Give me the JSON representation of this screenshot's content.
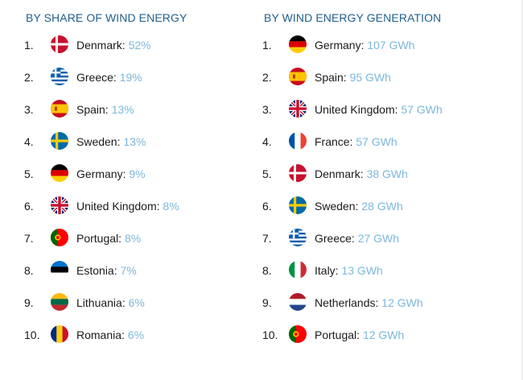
{
  "left": {
    "heading": "BY SHARE OF WIND ENERGY",
    "items": [
      {
        "rank": "1.",
        "flag": "denmark-flag-icon",
        "country": "Denmark:",
        "value": "52%"
      },
      {
        "rank": "2.",
        "flag": "greece-flag-icon",
        "country": "Greece:",
        "value": "19%"
      },
      {
        "rank": "3.",
        "flag": "spain-flag-icon",
        "country": "Spain:",
        "value": "13%"
      },
      {
        "rank": "4.",
        "flag": "sweden-flag-icon",
        "country": "Sweden:",
        "value": "13%"
      },
      {
        "rank": "5.",
        "flag": "germany-flag-icon",
        "country": "Germany:",
        "value": "9%"
      },
      {
        "rank": "6.",
        "flag": "united-kingdom-flag-icon",
        "country": "United Kingdom:",
        "value": "8%"
      },
      {
        "rank": "7.",
        "flag": "portugal-flag-icon",
        "country": "Portugal:",
        "value": "8%"
      },
      {
        "rank": "8.",
        "flag": "estonia-flag-icon",
        "country": "Estonia:",
        "value": "7%"
      },
      {
        "rank": "9.",
        "flag": "lithuania-flag-icon",
        "country": "Lithuania:",
        "value": "6%"
      },
      {
        "rank": "10.",
        "flag": "romania-flag-icon",
        "country": "Romania:",
        "value": "6%"
      }
    ]
  },
  "right": {
    "heading": "BY WIND ENERGY GENERATION",
    "items": [
      {
        "rank": "1.",
        "flag": "germany-flag-icon",
        "country": "Germany:",
        "value": "107 GWh"
      },
      {
        "rank": "2.",
        "flag": "spain-flag-icon",
        "country": "Spain:",
        "value": "95 GWh"
      },
      {
        "rank": "3.",
        "flag": "united-kingdom-flag-icon",
        "country": "United Kingdom:",
        "value": "57 GWh"
      },
      {
        "rank": "4.",
        "flag": "france-flag-icon",
        "country": "France:",
        "value": "57 GWh"
      },
      {
        "rank": "5.",
        "flag": "denmark-flag-icon",
        "country": "Denmark:",
        "value": "38 GWh"
      },
      {
        "rank": "6.",
        "flag": "sweden-flag-icon",
        "country": "Sweden:",
        "value": "28 GWh"
      },
      {
        "rank": "7.",
        "flag": "greece-flag-icon",
        "country": "Greece:",
        "value": "27 GWh"
      },
      {
        "rank": "8.",
        "flag": "italy-flag-icon",
        "country": "Italy:",
        "value": "13 GWh"
      },
      {
        "rank": "9.",
        "flag": "netherlands-flag-icon",
        "country": "Netherlands:",
        "value": "12 GWh"
      },
      {
        "rank": "10.",
        "flag": "portugal-flag-icon",
        "country": "Portugal:",
        "value": "12 GWh"
      }
    ]
  },
  "colors": {
    "heading": "#1f5f8b",
    "value": "#7ab8db",
    "text": "#1a1a1a"
  }
}
